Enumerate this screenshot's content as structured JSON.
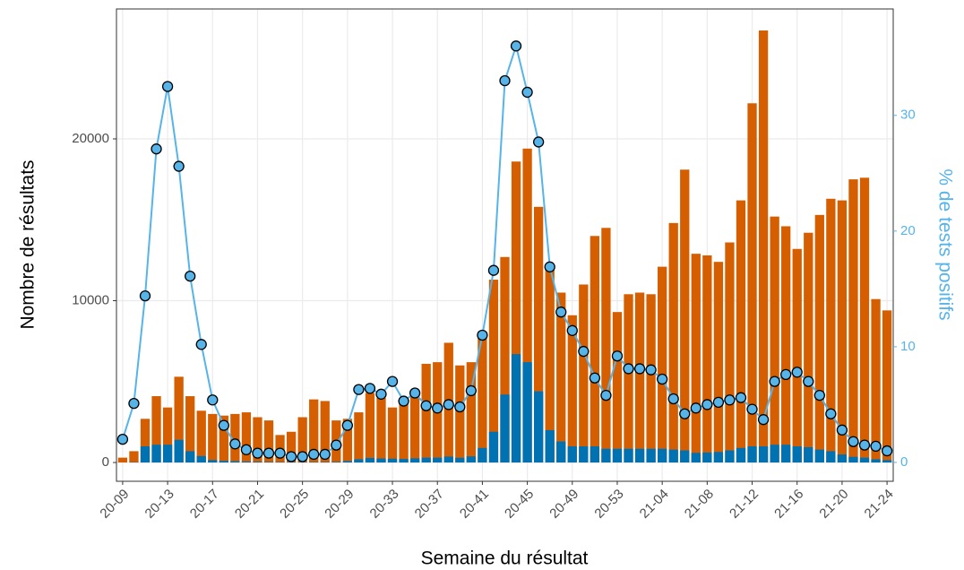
{
  "chart_data": {
    "type": "bar",
    "x_label": "Semaine du résultat",
    "y_label": "Nombre de résultats",
    "y2_label": "% de tests positifs",
    "categories": [
      "20-09",
      null,
      null,
      null,
      "20-13",
      null,
      null,
      null,
      "20-17",
      null,
      null,
      null,
      "20-21",
      null,
      null,
      null,
      "20-25",
      null,
      null,
      null,
      "20-29",
      null,
      null,
      null,
      "20-33",
      null,
      null,
      null,
      "20-37",
      null,
      null,
      null,
      "20-41",
      null,
      null,
      null,
      "20-45",
      null,
      null,
      null,
      "20-49",
      null,
      null,
      null,
      "20-53",
      null,
      null,
      null,
      "21-04",
      null,
      null,
      null,
      "21-08",
      null,
      null,
      null,
      "21-12",
      null,
      null,
      null,
      "21-16",
      null,
      null,
      null,
      "21-20",
      null,
      null,
      null,
      "21-24"
    ],
    "series": [
      {
        "color": "#d55e00",
        "values": [
          300,
          700,
          2700,
          4100,
          3400,
          5300,
          4100,
          3200,
          3000,
          2900,
          3000,
          3100,
          2800,
          2600,
          1700,
          1900,
          2800,
          3900,
          3800,
          2600,
          2700,
          3100,
          4300,
          4000,
          3400,
          4000,
          4200,
          6100,
          6200,
          7400,
          6000,
          6200,
          8100,
          11300,
          12700,
          18600,
          19400,
          15800,
          12000,
          10500,
          9100,
          11000,
          14000,
          14500,
          9300,
          10400,
          10500,
          10400,
          12100,
          14800,
          18100,
          12900,
          12800,
          12400,
          13600,
          16200,
          22200,
          26700,
          15200,
          14600,
          13200,
          14200,
          15300,
          16300,
          16200,
          17500,
          17600,
          10100,
          9400
        ]
      },
      {
        "color": "#0072b2",
        "values": [
          0,
          20,
          1000,
          1100,
          1100,
          1400,
          700,
          400,
          150,
          100,
          80,
          60,
          50,
          40,
          30,
          30,
          30,
          30,
          30,
          40,
          90,
          200,
          280,
          250,
          240,
          220,
          260,
          300,
          300,
          370,
          290,
          380,
          900,
          1900,
          4200,
          6700,
          6200,
          4400,
          2000,
          1300,
          1000,
          1000,
          1000,
          850,
          850,
          850,
          850,
          850,
          850,
          800,
          750,
          600,
          620,
          650,
          750,
          900,
          1000,
          1000,
          1100,
          1100,
          1000,
          950,
          800,
          700,
          500,
          350,
          300,
          200,
          150
        ]
      },
      {
        "type": "line",
        "axis": "y2",
        "color": "#56b4e9",
        "values": [
          2.0,
          5.1,
          14.4,
          27.1,
          32.5,
          25.6,
          16.1,
          10.2,
          5.4,
          3.2,
          1.6,
          1.1,
          0.8,
          0.8,
          0.8,
          0.5,
          0.5,
          0.7,
          0.7,
          1.5,
          3.2,
          6.3,
          6.4,
          5.9,
          7.0,
          5.3,
          6.0,
          4.9,
          4.7,
          5.0,
          4.8,
          6.2,
          11.0,
          16.6,
          33.0,
          36.0,
          32.0,
          27.7,
          16.9,
          13.0,
          11.4,
          9.6,
          7.3,
          5.8,
          9.2,
          8.1,
          8.1,
          8.0,
          7.2,
          5.5,
          4.2,
          4.7,
          5.0,
          5.2,
          5.4,
          5.6,
          4.6,
          3.7,
          7.0,
          7.6,
          7.8,
          7.0,
          5.8,
          4.2,
          2.8,
          1.8,
          1.5,
          1.4,
          1.0
        ]
      }
    ],
    "ylim": [
      -1160,
      28030
    ],
    "yticks": [
      0,
      10000,
      20000
    ],
    "y2lim": [
      -1.63,
      39.2
    ],
    "y2ticks": [
      0,
      10,
      20,
      30
    ],
    "y2_color": "#56b4e9",
    "grid": true
  }
}
